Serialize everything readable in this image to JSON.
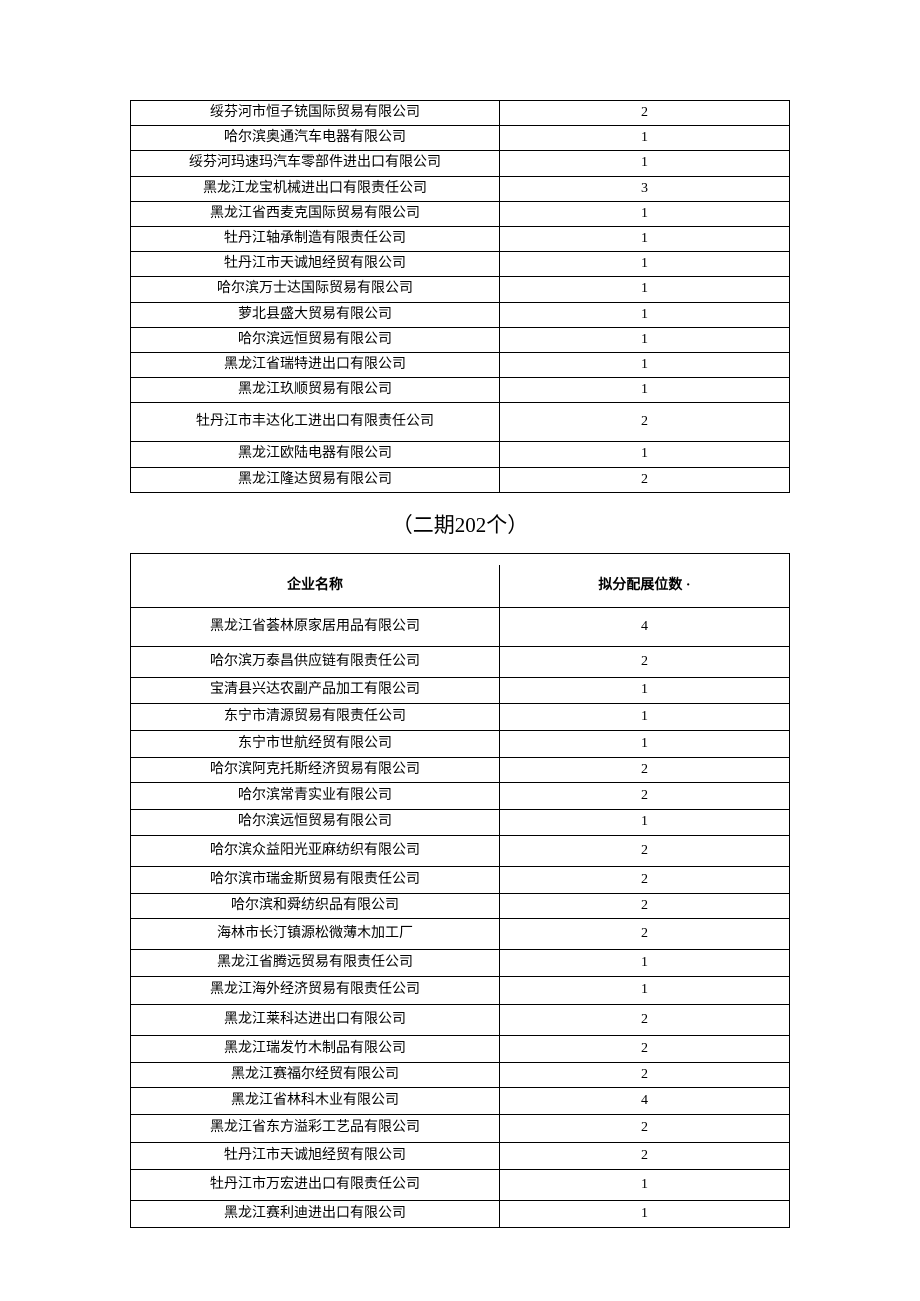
{
  "table1": {
    "rows": [
      {
        "name": "绥芬河市恒子铳国际贸易有限公司",
        "count": "2"
      },
      {
        "name": "哈尔滨奥通汽车电器有限公司",
        "count": "1"
      },
      {
        "name": "绥芬河玛速玛汽车零部件进出口有限公司",
        "count": "1"
      },
      {
        "name": "黑龙江龙宝机械进出口有限责任公司",
        "count": "3"
      },
      {
        "name": "黑龙江省西麦克国际贸易有限公司",
        "count": "1"
      },
      {
        "name": "牡丹江轴承制造有限责任公司",
        "count": "1"
      },
      {
        "name": "牡丹江市天诚旭经贸有限公司",
        "count": "1"
      },
      {
        "name": "哈尔滨万士达国际贸易有限公司",
        "count": "1"
      },
      {
        "name": "萝北县盛大贸易有限公司",
        "count": "1"
      },
      {
        "name": "哈尔滨远恒贸易有限公司",
        "count": "1"
      },
      {
        "name": "黑龙江省瑞特进出口有限公司",
        "count": "1"
      },
      {
        "name": "黑龙江玖顺贸易有限公司",
        "count": "1"
      },
      {
        "name": "牡丹江市丰达化工进出口有限责任公司",
        "count": "2",
        "tall": true
      },
      {
        "name": "黑龙江欧陆电器有限公司",
        "count": "1"
      },
      {
        "name": "黑龙江隆达贸易有限公司",
        "count": "2"
      }
    ]
  },
  "section_title": "（二期202个）",
  "table2": {
    "header": {
      "name": "企业名称",
      "count": "拟分配展位数 ·"
    },
    "rows": [
      {
        "name": "黑龙江省荟林原家居用品有限公司",
        "count": "4",
        "tall": true
      },
      {
        "name": "哈尔滨万泰昌供应链有限责任公司",
        "count": "2",
        "taller": true
      },
      {
        "name": "宝清县兴达农副产品加工有限公司",
        "count": "1"
      },
      {
        "name": "东宁市清源贸易有限责任公司",
        "count": "1",
        "mid": true
      },
      {
        "name": "东宁市世航经贸有限公司",
        "count": "1",
        "mid": true
      },
      {
        "name": "哈尔滨阿克托斯经济贸易有限公司",
        "count": "2"
      },
      {
        "name": "哈尔滨常青实业有限公司",
        "count": "2",
        "mid": true
      },
      {
        "name": "哈尔滨远恒贸易有限公司",
        "count": "1"
      },
      {
        "name": "哈尔滨众益阳光亚麻纺织有限公司",
        "count": "2",
        "taller": true
      },
      {
        "name": "哈尔滨市瑞金斯贸易有限责任公司",
        "count": "2",
        "mid": true
      },
      {
        "name": "哈尔滨和舜纺织品有限公司",
        "count": "2"
      },
      {
        "name": "海林市长汀镇源松微薄木加工厂",
        "count": "2",
        "taller": true
      },
      {
        "name": "黑龙江省腾远贸易有限责任公司",
        "count": "1",
        "mid": true
      },
      {
        "name": "黑龙江海外经济贸易有限责任公司",
        "count": "1",
        "mid": true
      },
      {
        "name": "黑龙江莱科达进出口有限公司",
        "count": "2",
        "taller": true
      },
      {
        "name": "黑龙江瑞发竹木制品有限公司",
        "count": "2",
        "mid": true
      },
      {
        "name": "黑龙江赛福尔经贸有限公司",
        "count": "2"
      },
      {
        "name": "黑龙江省林科木业有限公司",
        "count": "4",
        "mid": true
      },
      {
        "name": "黑龙江省东方溢彩工艺品有限公司",
        "count": "2",
        "mid": true
      },
      {
        "name": "牡丹江市天诚旭经贸有限公司",
        "count": "2",
        "mid": true
      },
      {
        "name": "牡丹江市万宏进出口有限责任公司",
        "count": "1",
        "taller": true
      },
      {
        "name": "黑龙江赛利迪进出口有限公司",
        "count": "1",
        "mid": true
      }
    ]
  }
}
